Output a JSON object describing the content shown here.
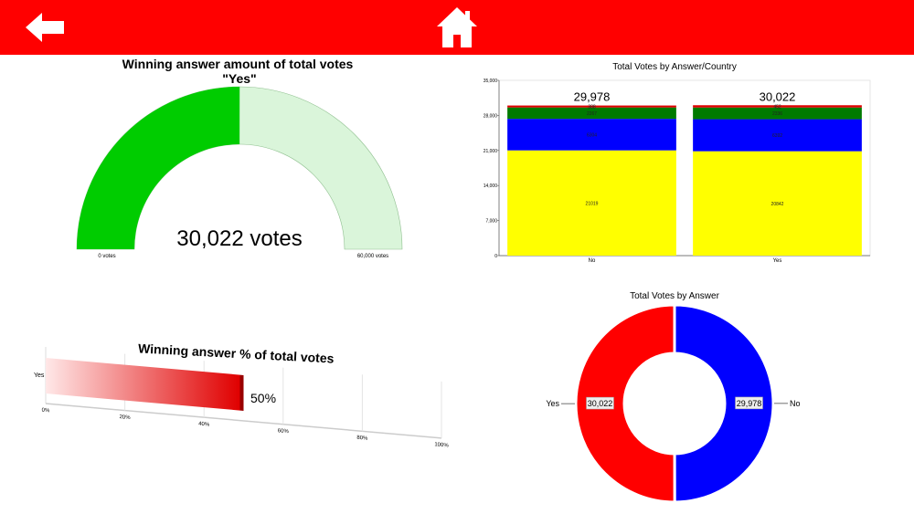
{
  "nav": {
    "back_icon": "arrow-left-icon",
    "home_icon": "home-icon"
  },
  "gauge": {
    "title_line1": "Winning answer amount of total votes",
    "title_line2": "\"Yes\"",
    "value_label": "30,022 votes",
    "min_label": "0 votes",
    "max_label": "60,000 votes",
    "value": 30022,
    "max": 60000,
    "fill_color": "#00cc00",
    "track_color": "#daf5da"
  },
  "percent_bar": {
    "title": "Winning answer % of total votes",
    "category": "Yes",
    "value_label": "50%",
    "value": 50,
    "ticks": [
      "0%",
      "20%",
      "40%",
      "60%",
      "80%",
      "100%"
    ]
  },
  "chart_data": [
    {
      "type": "bar",
      "title": "Total Votes by Answer/Country",
      "categories": [
        "No",
        "Yes"
      ],
      "totals": [
        "29,978",
        "30,022"
      ],
      "yticks": [
        "0",
        "7,000",
        "14,000",
        "21,000",
        "28,000",
        "35,000"
      ],
      "ylim": [
        0,
        35000
      ],
      "stacked": true,
      "series": [
        {
          "values": [
            21019,
            20842
          ],
          "labels": [
            "21019",
            "20842"
          ],
          "color": "#ffff00"
        },
        {
          "values": [
            6300,
            6400
          ],
          "labels": [
            "6304",
            "6392"
          ],
          "color": "#0000ff"
        },
        {
          "values": [
            2267,
            2336
          ],
          "labels": [
            "2267",
            "2336"
          ],
          "color": "#007a00"
        },
        {
          "values": [
            388,
            452
          ],
          "labels": [
            "388",
            "452"
          ],
          "color": "#dd0000"
        }
      ]
    },
    {
      "type": "pie",
      "title": "Total Votes by Answer",
      "donut": true,
      "slices": [
        {
          "label": "Yes",
          "value": 30022,
          "value_label": "30,022",
          "color": "#ff0000"
        },
        {
          "label": "No",
          "value": 29978,
          "value_label": "29,978",
          "color": "#0000ff"
        }
      ]
    }
  ]
}
